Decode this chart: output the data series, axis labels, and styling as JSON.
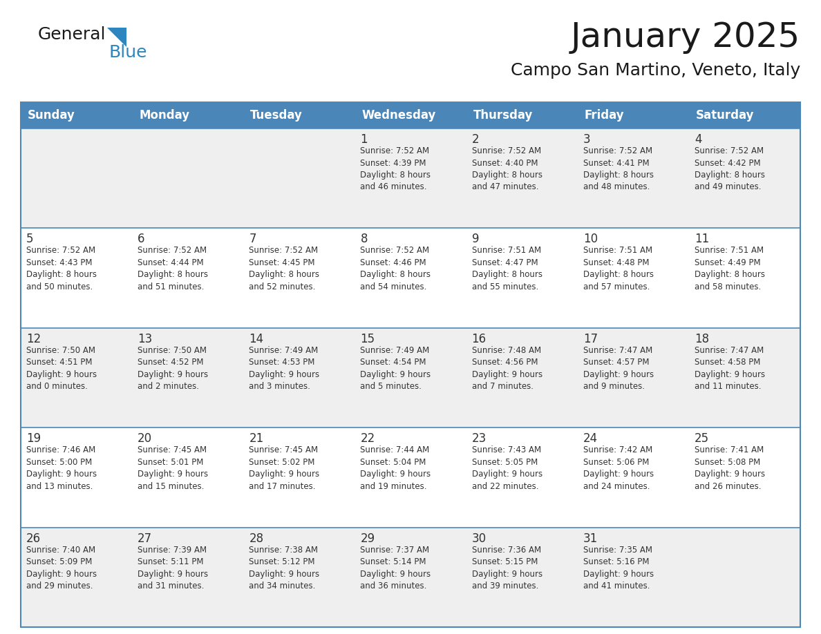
{
  "title": "January 2025",
  "subtitle": "Campo San Martino, Veneto, Italy",
  "header_bg": "#4A86B8",
  "header_text_color": "#FFFFFF",
  "row_bg_odd": "#EFEFEF",
  "row_bg_even": "#FFFFFF",
  "border_color": "#4A86B8",
  "text_color": "#333333",
  "days_of_week": [
    "Sunday",
    "Monday",
    "Tuesday",
    "Wednesday",
    "Thursday",
    "Friday",
    "Saturday"
  ],
  "calendar_data": [
    [
      {
        "day": "",
        "info": ""
      },
      {
        "day": "",
        "info": ""
      },
      {
        "day": "",
        "info": ""
      },
      {
        "day": "1",
        "info": "Sunrise: 7:52 AM\nSunset: 4:39 PM\nDaylight: 8 hours\nand 46 minutes."
      },
      {
        "day": "2",
        "info": "Sunrise: 7:52 AM\nSunset: 4:40 PM\nDaylight: 8 hours\nand 47 minutes."
      },
      {
        "day": "3",
        "info": "Sunrise: 7:52 AM\nSunset: 4:41 PM\nDaylight: 8 hours\nand 48 minutes."
      },
      {
        "day": "4",
        "info": "Sunrise: 7:52 AM\nSunset: 4:42 PM\nDaylight: 8 hours\nand 49 minutes."
      }
    ],
    [
      {
        "day": "5",
        "info": "Sunrise: 7:52 AM\nSunset: 4:43 PM\nDaylight: 8 hours\nand 50 minutes."
      },
      {
        "day": "6",
        "info": "Sunrise: 7:52 AM\nSunset: 4:44 PM\nDaylight: 8 hours\nand 51 minutes."
      },
      {
        "day": "7",
        "info": "Sunrise: 7:52 AM\nSunset: 4:45 PM\nDaylight: 8 hours\nand 52 minutes."
      },
      {
        "day": "8",
        "info": "Sunrise: 7:52 AM\nSunset: 4:46 PM\nDaylight: 8 hours\nand 54 minutes."
      },
      {
        "day": "9",
        "info": "Sunrise: 7:51 AM\nSunset: 4:47 PM\nDaylight: 8 hours\nand 55 minutes."
      },
      {
        "day": "10",
        "info": "Sunrise: 7:51 AM\nSunset: 4:48 PM\nDaylight: 8 hours\nand 57 minutes."
      },
      {
        "day": "11",
        "info": "Sunrise: 7:51 AM\nSunset: 4:49 PM\nDaylight: 8 hours\nand 58 minutes."
      }
    ],
    [
      {
        "day": "12",
        "info": "Sunrise: 7:50 AM\nSunset: 4:51 PM\nDaylight: 9 hours\nand 0 minutes."
      },
      {
        "day": "13",
        "info": "Sunrise: 7:50 AM\nSunset: 4:52 PM\nDaylight: 9 hours\nand 2 minutes."
      },
      {
        "day": "14",
        "info": "Sunrise: 7:49 AM\nSunset: 4:53 PM\nDaylight: 9 hours\nand 3 minutes."
      },
      {
        "day": "15",
        "info": "Sunrise: 7:49 AM\nSunset: 4:54 PM\nDaylight: 9 hours\nand 5 minutes."
      },
      {
        "day": "16",
        "info": "Sunrise: 7:48 AM\nSunset: 4:56 PM\nDaylight: 9 hours\nand 7 minutes."
      },
      {
        "day": "17",
        "info": "Sunrise: 7:47 AM\nSunset: 4:57 PM\nDaylight: 9 hours\nand 9 minutes."
      },
      {
        "day": "18",
        "info": "Sunrise: 7:47 AM\nSunset: 4:58 PM\nDaylight: 9 hours\nand 11 minutes."
      }
    ],
    [
      {
        "day": "19",
        "info": "Sunrise: 7:46 AM\nSunset: 5:00 PM\nDaylight: 9 hours\nand 13 minutes."
      },
      {
        "day": "20",
        "info": "Sunrise: 7:45 AM\nSunset: 5:01 PM\nDaylight: 9 hours\nand 15 minutes."
      },
      {
        "day": "21",
        "info": "Sunrise: 7:45 AM\nSunset: 5:02 PM\nDaylight: 9 hours\nand 17 minutes."
      },
      {
        "day": "22",
        "info": "Sunrise: 7:44 AM\nSunset: 5:04 PM\nDaylight: 9 hours\nand 19 minutes."
      },
      {
        "day": "23",
        "info": "Sunrise: 7:43 AM\nSunset: 5:05 PM\nDaylight: 9 hours\nand 22 minutes."
      },
      {
        "day": "24",
        "info": "Sunrise: 7:42 AM\nSunset: 5:06 PM\nDaylight: 9 hours\nand 24 minutes."
      },
      {
        "day": "25",
        "info": "Sunrise: 7:41 AM\nSunset: 5:08 PM\nDaylight: 9 hours\nand 26 minutes."
      }
    ],
    [
      {
        "day": "26",
        "info": "Sunrise: 7:40 AM\nSunset: 5:09 PM\nDaylight: 9 hours\nand 29 minutes."
      },
      {
        "day": "27",
        "info": "Sunrise: 7:39 AM\nSunset: 5:11 PM\nDaylight: 9 hours\nand 31 minutes."
      },
      {
        "day": "28",
        "info": "Sunrise: 7:38 AM\nSunset: 5:12 PM\nDaylight: 9 hours\nand 34 minutes."
      },
      {
        "day": "29",
        "info": "Sunrise: 7:37 AM\nSunset: 5:14 PM\nDaylight: 9 hours\nand 36 minutes."
      },
      {
        "day": "30",
        "info": "Sunrise: 7:36 AM\nSunset: 5:15 PM\nDaylight: 9 hours\nand 39 minutes."
      },
      {
        "day": "31",
        "info": "Sunrise: 7:35 AM\nSunset: 5:16 PM\nDaylight: 9 hours\nand 41 minutes."
      },
      {
        "day": "",
        "info": ""
      }
    ]
  ],
  "logo_general_color": "#1a1a1a",
  "logo_blue_color": "#2E86C1",
  "fig_width": 11.88,
  "fig_height": 9.18,
  "dpi": 100
}
